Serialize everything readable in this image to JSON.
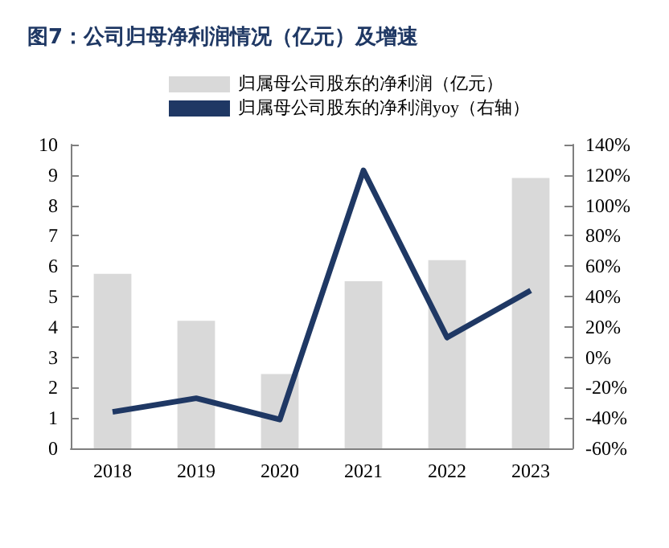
{
  "chart_data": {
    "type": "bar",
    "title": "图7：公司归母净利润情况（亿元）及增速",
    "categories": [
      "2018",
      "2019",
      "2020",
      "2021",
      "2022",
      "2023"
    ],
    "series": [
      {
        "name": "归属母公司股东的净利润（亿元）",
        "color": "#d9d9d9",
        "values": [
          5.75,
          4.2,
          2.45,
          5.5,
          6.2,
          8.9
        ]
      },
      {
        "name": "归属母公司股东的净利润yoy（右轴）",
        "type": "line",
        "axis": "y2",
        "color": "#1f3864",
        "values": [
          -36,
          -27,
          -41,
          123,
          13,
          44
        ]
      }
    ],
    "ylim": [
      0,
      10
    ],
    "yticks": [
      0,
      1,
      2,
      3,
      4,
      5,
      6,
      7,
      8,
      9,
      10
    ],
    "y2lim": [
      -60,
      140
    ],
    "y2ticks": [
      {
        "value": -60,
        "label": "-60%"
      },
      {
        "value": -40,
        "label": "-40%"
      },
      {
        "value": -20,
        "label": "-20%"
      },
      {
        "value": 0,
        "label": "0%"
      },
      {
        "value": 20,
        "label": "20%"
      },
      {
        "value": 40,
        "label": "40%"
      },
      {
        "value": 60,
        "label": "60%"
      },
      {
        "value": 80,
        "label": "80%"
      },
      {
        "value": 100,
        "label": "100%"
      },
      {
        "value": 120,
        "label": "120%"
      },
      {
        "value": 140,
        "label": "140%"
      }
    ],
    "legend": "top",
    "grid": false,
    "marker": "none"
  }
}
